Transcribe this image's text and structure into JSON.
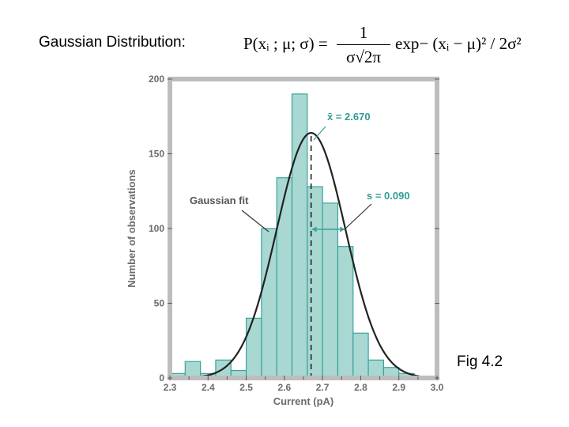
{
  "heading": "Gaussian Distribution:",
  "equation": {
    "lhs": "P(xᵢ ; μ; σ) =",
    "numerator": "1",
    "denominator": "σ√2π",
    "rhs": "exp− (xᵢ − μ)² / 2σ²"
  },
  "figure_label": "Fig 4.2",
  "chart_data": {
    "type": "bar",
    "xlabel": "Current (pA)",
    "ylabel": "Number of observations",
    "xlim": [
      2.3,
      3.0
    ],
    "ylim": [
      0,
      200
    ],
    "x_ticks": [
      "2.3",
      "2.4",
      "2.5",
      "2.6",
      "2.7",
      "2.8",
      "2.9",
      "3.0"
    ],
    "y_ticks": [
      "0",
      "50",
      "100",
      "150",
      "200"
    ],
    "bin_width": 0.04,
    "bin_starts": [
      2.3,
      2.34,
      2.38,
      2.42,
      2.46,
      2.5,
      2.54,
      2.58,
      2.62,
      2.66,
      2.7,
      2.74,
      2.78,
      2.82,
      2.86,
      2.9,
      2.94
    ],
    "values": [
      3,
      11,
      3,
      12,
      5,
      40,
      100,
      134,
      190,
      128,
      117,
      88,
      30,
      12,
      7,
      3,
      0
    ],
    "fit": {
      "mean": 2.67,
      "sd": 0.09,
      "peak": 164
    },
    "annotations": {
      "mean_label": "x̄ = 2.670",
      "sd_label": "s = 0.090",
      "fit_label": "Gaussian fit"
    },
    "colors": {
      "bar_fill": "#a9d8d3",
      "bar_stroke": "#3aa39a",
      "plot_bg": "#ffffff",
      "frame": "#bdbdbd",
      "curve": "#222222",
      "accent_text": "#2f9e95",
      "axis_text": "#6b6b6b"
    }
  }
}
